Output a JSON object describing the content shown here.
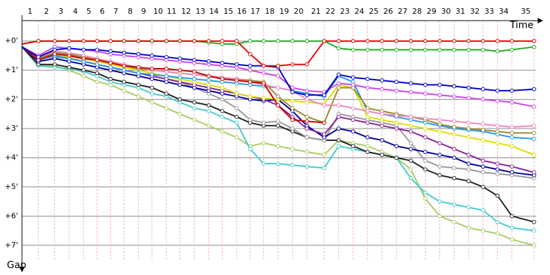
{
  "chart_data": {
    "type": "line",
    "x_label": "Time",
    "y_label": "Gap",
    "x": [
      0,
      1.7,
      3.4,
      4.9,
      6.4,
      7.8,
      9.2,
      10.6,
      12.1,
      13.5,
      15.0,
      16.4,
      17.9,
      19.4,
      20.8,
      22.3,
      23.7,
      25.1,
      26.6,
      28.1,
      29.6,
      31.4,
      32.9,
      34.4,
      35.9,
      37.4,
      38.9,
      40.4,
      41.9,
      43.4,
      44.9,
      46.4,
      47.9,
      49.4,
      50.9,
      53.2
    ],
    "xlim": [
      0,
      54
    ],
    "xticks": [
      {
        "value": 1.7,
        "label": "1"
      },
      {
        "value": 3.4,
        "label": "2"
      },
      {
        "value": 4.9,
        "label": "3"
      },
      {
        "value": 6.4,
        "label": "4"
      },
      {
        "value": 7.8,
        "label": "5"
      },
      {
        "value": 9.2,
        "label": "6"
      },
      {
        "value": 10.6,
        "label": "7"
      },
      {
        "value": 12.1,
        "label": "8"
      },
      {
        "value": 13.5,
        "label": "9"
      },
      {
        "value": 15.0,
        "label": "10"
      },
      {
        "value": 16.4,
        "label": "11"
      },
      {
        "value": 17.9,
        "label": "12"
      },
      {
        "value": 19.4,
        "label": "13"
      },
      {
        "value": 20.8,
        "label": "14"
      },
      {
        "value": 22.3,
        "label": "15"
      },
      {
        "value": 23.7,
        "label": "16"
      },
      {
        "value": 25.1,
        "label": "17"
      },
      {
        "value": 26.6,
        "label": "18"
      },
      {
        "value": 28.1,
        "label": "19"
      },
      {
        "value": 29.6,
        "label": "20"
      },
      {
        "value": 31.4,
        "label": "21"
      },
      {
        "value": 32.9,
        "label": "22"
      },
      {
        "value": 34.4,
        "label": "23"
      },
      {
        "value": 35.9,
        "label": "24"
      },
      {
        "value": 37.4,
        "label": "25"
      },
      {
        "value": 38.9,
        "label": "26"
      },
      {
        "value": 40.4,
        "label": "27"
      },
      {
        "value": 41.9,
        "label": "28"
      },
      {
        "value": 43.4,
        "label": "29"
      },
      {
        "value": 44.9,
        "label": "30"
      },
      {
        "value": 46.4,
        "label": "31"
      },
      {
        "value": 47.9,
        "label": "32"
      },
      {
        "value": 49.4,
        "label": "33"
      },
      {
        "value": 50.9,
        "label": "34"
      },
      {
        "value": 53.2,
        "label": "35"
      }
    ],
    "ylim": [
      -0.7,
      7.5
    ],
    "yticks": [
      {
        "value": 0,
        "label": "+0'"
      },
      {
        "value": 1,
        "label": "+1'"
      },
      {
        "value": 2,
        "label": "+2'"
      },
      {
        "value": 3,
        "label": "+3'"
      },
      {
        "value": 4,
        "label": "+4'"
      },
      {
        "value": 5,
        "label": "+5'"
      },
      {
        "value": 6,
        "label": "+6'"
      },
      {
        "value": 7,
        "label": "+7'"
      }
    ],
    "grid": true,
    "series": [
      {
        "color": "#aacc66",
        "values": [
          0.2,
          0.8,
          0.85,
          1.0,
          1.2,
          1.4,
          1.5,
          1.7,
          1.9,
          2.1,
          2.3,
          2.5,
          2.7,
          2.9,
          3.1,
          3.3,
          3.6,
          3.5,
          3.6,
          3.7,
          3.8,
          3.9,
          3.4,
          3.5,
          3.6,
          3.8,
          4.0,
          4.4,
          5.4,
          6.0,
          6.2,
          6.4,
          6.5,
          6.6,
          6.8,
          7.0
        ]
      },
      {
        "color": "#44cccc",
        "values": [
          0.2,
          0.85,
          0.9,
          0.95,
          1.05,
          1.2,
          1.4,
          1.5,
          1.6,
          1.8,
          1.9,
          2.1,
          2.3,
          2.4,
          2.6,
          2.8,
          3.7,
          4.2,
          4.2,
          4.25,
          4.3,
          4.35,
          3.6,
          3.7,
          3.8,
          3.9,
          4.0,
          4.7,
          5.2,
          5.5,
          5.6,
          5.7,
          5.8,
          6.2,
          6.4,
          6.5
        ]
      },
      {
        "color": "#222222",
        "values": [
          0.2,
          0.8,
          0.8,
          0.9,
          1.0,
          1.1,
          1.3,
          1.4,
          1.5,
          1.6,
          1.8,
          2.0,
          2.1,
          2.2,
          2.4,
          2.6,
          2.8,
          2.9,
          2.9,
          3.1,
          3.3,
          3.4,
          3.4,
          3.6,
          3.8,
          3.9,
          4.0,
          4.1,
          4.4,
          4.6,
          4.7,
          4.8,
          5.0,
          5.3,
          6.0,
          6.2
        ]
      },
      {
        "color": "#999999",
        "values": [
          0.2,
          0.6,
          0.55,
          0.6,
          0.7,
          0.8,
          0.9,
          1.0,
          1.1,
          1.2,
          1.3,
          1.4,
          1.6,
          1.8,
          2.0,
          2.3,
          2.7,
          2.8,
          2.75,
          3.0,
          3.3,
          3.4,
          2.5,
          2.6,
          2.7,
          2.8,
          2.9,
          3.5,
          4.1,
          4.3,
          4.35,
          4.4,
          4.5,
          4.55,
          4.6,
          4.7
        ]
      },
      {
        "color": "#000099",
        "values": [
          0.2,
          0.7,
          0.6,
          0.7,
          0.8,
          0.9,
          1.0,
          1.1,
          1.2,
          1.3,
          1.4,
          1.5,
          1.6,
          1.7,
          1.8,
          1.9,
          2.0,
          2.05,
          2.0,
          2.4,
          2.9,
          3.3,
          3.0,
          3.1,
          3.3,
          3.4,
          3.6,
          3.7,
          3.8,
          3.9,
          4.0,
          4.2,
          4.3,
          4.4,
          4.5,
          4.6
        ]
      },
      {
        "color": "#882299",
        "values": [
          0.2,
          0.6,
          0.5,
          0.6,
          0.7,
          0.8,
          0.9,
          1.0,
          1.1,
          1.2,
          1.3,
          1.4,
          1.5,
          1.6,
          1.7,
          1.8,
          1.9,
          2.0,
          2.2,
          2.6,
          3.0,
          3.2,
          2.6,
          2.7,
          2.8,
          2.9,
          3.0,
          3.1,
          3.3,
          3.5,
          3.7,
          3.9,
          4.1,
          4.2,
          4.3,
          4.5
        ]
      },
      {
        "color": "#dddd00",
        "values": [
          0.2,
          0.6,
          0.5,
          0.55,
          0.6,
          0.7,
          0.8,
          0.9,
          1.0,
          1.1,
          1.2,
          1.3,
          1.4,
          1.5,
          1.6,
          1.8,
          1.9,
          1.95,
          2.0,
          2.05,
          2.1,
          2.15,
          1.5,
          1.6,
          2.6,
          2.7,
          2.8,
          2.9,
          3.0,
          3.1,
          3.2,
          3.3,
          3.4,
          3.5,
          3.6,
          3.9
        ]
      },
      {
        "color": "#2299ee",
        "values": [
          0.2,
          0.65,
          0.5,
          0.6,
          0.7,
          0.8,
          0.9,
          1.0,
          1.1,
          1.15,
          1.2,
          1.25,
          1.3,
          1.35,
          1.4,
          1.45,
          1.5,
          1.55,
          1.6,
          1.7,
          1.8,
          1.9,
          1.2,
          1.4,
          2.4,
          2.5,
          2.6,
          2.7,
          2.8,
          2.9,
          3.0,
          3.05,
          3.1,
          3.2,
          3.3,
          3.35
        ]
      },
      {
        "color": "#998833",
        "values": [
          0.2,
          0.6,
          0.4,
          0.45,
          0.55,
          0.65,
          0.75,
          0.85,
          0.95,
          1.0,
          1.05,
          1.1,
          1.15,
          1.2,
          1.25,
          1.3,
          1.35,
          1.4,
          1.9,
          2.3,
          2.6,
          2.8,
          1.6,
          1.6,
          2.3,
          2.4,
          2.5,
          2.6,
          2.7,
          2.85,
          2.95,
          3.0,
          3.05,
          3.1,
          3.15,
          3.15
        ]
      },
      {
        "color": "#ee88bb",
        "values": [
          0.2,
          0.55,
          0.35,
          0.4,
          0.5,
          0.6,
          0.7,
          0.8,
          0.9,
          1.0,
          1.05,
          1.1,
          1.15,
          1.2,
          1.25,
          1.3,
          1.4,
          1.5,
          1.6,
          1.7,
          2.0,
          2.2,
          2.2,
          2.3,
          2.4,
          2.5,
          2.55,
          2.6,
          2.65,
          2.7,
          2.75,
          2.8,
          2.85,
          2.9,
          2.95,
          2.9
        ]
      },
      {
        "color": "#cc44ee",
        "values": [
          0.2,
          0.5,
          0.2,
          0.25,
          0.3,
          0.35,
          0.45,
          0.5,
          0.55,
          0.6,
          0.65,
          0.7,
          0.75,
          0.8,
          0.85,
          0.9,
          1.0,
          1.1,
          1.2,
          1.6,
          1.7,
          1.75,
          1.45,
          1.5,
          1.6,
          1.65,
          1.7,
          1.75,
          1.8,
          1.85,
          1.9,
          1.95,
          2.0,
          2.05,
          2.1,
          2.25
        ]
      },
      {
        "color": "#cc0000",
        "values": [
          0.2,
          0.65,
          0.45,
          0.5,
          0.6,
          0.65,
          0.75,
          0.85,
          0.9,
          0.95,
          0.95,
          1.0,
          1.05,
          1.2,
          1.3,
          1.35,
          1.4,
          1.45,
          2.2,
          2.7,
          2.75,
          2.8,
          null,
          null,
          null,
          null,
          null,
          null,
          null,
          null,
          null,
          null,
          null,
          null,
          null,
          null
        ]
      },
      {
        "color": "#0000cc",
        "values": [
          0.2,
          0.55,
          0.3,
          0.25,
          0.3,
          0.3,
          0.35,
          0.4,
          0.45,
          0.5,
          0.55,
          0.6,
          0.65,
          0.7,
          0.75,
          0.8,
          0.85,
          0.85,
          0.9,
          1.75,
          1.85,
          1.85,
          1.15,
          1.25,
          1.3,
          1.35,
          1.4,
          1.45,
          1.5,
          1.5,
          1.55,
          1.6,
          1.65,
          1.7,
          1.7,
          1.65
        ]
      },
      {
        "color": "#22aa22",
        "values": [
          0.1,
          0,
          0,
          0,
          0,
          0,
          0,
          0,
          0,
          0,
          0,
          0,
          0,
          0.05,
          0.1,
          0.1,
          0,
          0,
          0,
          0,
          0,
          0,
          0.25,
          0.3,
          0.3,
          0.3,
          0.3,
          0.3,
          0.3,
          0.3,
          0.3,
          0.3,
          0.3,
          0.35,
          0.3,
          0.2
        ]
      },
      {
        "color": "#ee0000",
        "values": [
          0.1,
          0,
          0,
          0,
          0,
          0,
          0,
          0,
          0,
          0,
          0,
          0,
          0,
          0,
          0,
          0,
          0.45,
          0.85,
          0.85,
          0.8,
          0.8,
          0,
          0,
          0,
          0,
          0,
          0,
          0,
          0,
          0,
          0,
          0,
          0,
          0,
          0,
          0
        ]
      }
    ]
  }
}
